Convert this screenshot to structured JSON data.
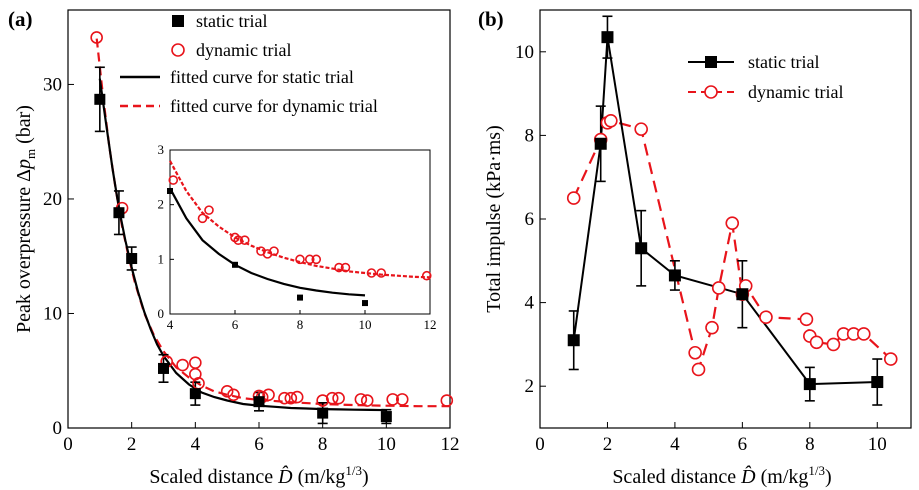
{
  "chart_data": [
    {
      "type": "scatter",
      "panel_label": "(a)",
      "xlabel": "Scaled distance D̂ (m/kg1/3)",
      "ylabel": "Peak overpressure Δpm (bar)",
      "xlim": [
        0,
        12
      ],
      "ylim": [
        0,
        36.5
      ],
      "xticks": [
        0,
        2,
        4,
        6,
        8,
        10,
        12
      ],
      "yticks": [
        0,
        10,
        20,
        30
      ],
      "legend_position": "top-right",
      "legend": [
        "static trial",
        "dynamic trial",
        "fitted curve for static trial",
        "fitted curve for dynamic trial"
      ],
      "colors": {
        "static": "#000000",
        "dynamic": "#e8141b"
      },
      "series": [
        {
          "name": "static trial",
          "marker": "square",
          "x": [
            1.0,
            1.6,
            2.0,
            3.0,
            4.0,
            6.0,
            8.0,
            10.0
          ],
          "y": [
            28.7,
            18.8,
            14.8,
            5.2,
            3.0,
            2.3,
            1.3,
            1.0
          ],
          "err": [
            2.8,
            1.9,
            1.0,
            1.2,
            1.0,
            0.8,
            0.9,
            0.6
          ]
        },
        {
          "name": "dynamic trial",
          "marker": "circle",
          "x": [
            0.9,
            1.7,
            3.1,
            3.6,
            4.0,
            4.0,
            4.1,
            5.0,
            5.2,
            6.0,
            6.1,
            6.3,
            6.8,
            7.0,
            7.2,
            8.0,
            8.3,
            8.5,
            9.2,
            9.4,
            10.2,
            10.5,
            11.9
          ],
          "y": [
            34.1,
            19.2,
            5.8,
            5.5,
            5.7,
            4.7,
            3.9,
            3.2,
            2.9,
            2.8,
            2.7,
            2.9,
            2.6,
            2.6,
            2.7,
            2.4,
            2.6,
            2.6,
            2.5,
            2.4,
            2.5,
            2.5,
            2.4
          ]
        },
        {
          "name": "fitted curve for static trial",
          "line": "solid",
          "x": [
            1.0,
            1.2,
            1.4,
            1.6,
            1.8,
            2.0,
            2.2,
            2.4,
            2.6,
            2.8,
            3.0,
            3.4,
            3.8,
            4.2,
            4.6,
            5.0,
            5.5,
            6.0,
            6.5,
            7.0,
            7.5,
            8.0,
            8.5,
            9.0,
            9.5,
            10.0
          ],
          "y": [
            30.5,
            26.5,
            22.6,
            19.2,
            16.4,
            14.0,
            11.9,
            10.1,
            8.6,
            7.3,
            6.3,
            4.8,
            3.8,
            3.1,
            2.7,
            2.4,
            2.1,
            1.95,
            1.85,
            1.75,
            1.7,
            1.65,
            1.62,
            1.6,
            1.58,
            1.56
          ]
        },
        {
          "name": "fitted curve for dynamic trial",
          "line": "dashed",
          "x": [
            0.9,
            1.1,
            1.3,
            1.5,
            1.7,
            1.9,
            2.1,
            2.4,
            2.7,
            3.0,
            3.4,
            3.8,
            4.2,
            4.6,
            5.0,
            5.5,
            6.0,
            7.0,
            8.0,
            9.0,
            10.0,
            11.0,
            12.0
          ],
          "y": [
            34.0,
            29.0,
            24.5,
            20.8,
            17.6,
            15.0,
            12.7,
            10.0,
            8.1,
            6.7,
            5.3,
            4.4,
            3.7,
            3.2,
            2.9,
            2.6,
            2.45,
            2.25,
            2.1,
            2.0,
            1.95,
            1.9,
            1.9
          ]
        }
      ],
      "inset": {
        "xlim": [
          4,
          12
        ],
        "ylim": [
          0,
          3
        ],
        "xticks": [
          4,
          6,
          8,
          10,
          12
        ],
        "yticks": [
          0,
          1,
          2,
          3
        ],
        "series": [
          {
            "name": "static trial",
            "x": [
              4.0,
              6.0,
              8.0,
              10.0
            ],
            "y": [
              2.25,
              0.9,
              0.3,
              0.2
            ]
          },
          {
            "name": "dynamic trial",
            "x": [
              4.1,
              5.0,
              5.2,
              6.0,
              6.1,
              6.3,
              6.8,
              7.0,
              7.2,
              8.0,
              8.3,
              8.5,
              9.2,
              9.4,
              10.2,
              10.5,
              11.9
            ],
            "y": [
              2.45,
              1.75,
              1.9,
              1.4,
              1.35,
              1.35,
              1.15,
              1.1,
              1.15,
              1.0,
              1.0,
              1.0,
              0.85,
              0.85,
              0.75,
              0.75,
              0.7
            ]
          },
          {
            "name": "fitted curve for static trial",
            "x": [
              4.0,
              4.5,
              5.0,
              5.5,
              6.0,
              6.5,
              7.0,
              7.5,
              8.0,
              8.5,
              9.0,
              9.5,
              10.0
            ],
            "y": [
              2.3,
              1.75,
              1.35,
              1.1,
              0.9,
              0.75,
              0.64,
              0.55,
              0.48,
              0.43,
              0.39,
              0.36,
              0.34
            ]
          },
          {
            "name": "fitted curve for dynamic trial",
            "x": [
              4.0,
              4.5,
              5.0,
              5.5,
              6.0,
              6.5,
              7.0,
              7.5,
              8.0,
              8.5,
              9.0,
              9.5,
              10.0,
              10.5,
              11.0,
              11.5,
              12.0
            ],
            "y": [
              2.8,
              2.25,
              1.85,
              1.6,
              1.4,
              1.25,
              1.13,
              1.03,
              0.95,
              0.88,
              0.83,
              0.78,
              0.75,
              0.72,
              0.7,
              0.68,
              0.67
            ]
          }
        ]
      }
    },
    {
      "type": "line",
      "panel_label": "(b)",
      "xlabel": "Scaled distance D̂ (m/kg1/3)",
      "ylabel": "Total impulse (kPa·ms)",
      "xlim": [
        0,
        11
      ],
      "ylim": [
        1.0,
        11.0
      ],
      "xticks": [
        0,
        2,
        4,
        6,
        8,
        10
      ],
      "yticks": [
        2,
        4,
        6,
        8,
        10
      ],
      "legend_position": "top-right",
      "legend": [
        "static trial",
        "dynamic trial"
      ],
      "colors": {
        "static": "#000000",
        "dynamic": "#e8141b"
      },
      "series": [
        {
          "name": "static trial",
          "marker": "square",
          "x": [
            1.0,
            1.8,
            2.0,
            3.0,
            4.0,
            6.0,
            8.0,
            10.0
          ],
          "y": [
            3.1,
            7.8,
            10.35,
            5.3,
            4.65,
            4.2,
            2.05,
            2.1
          ],
          "err": [
            0.7,
            0.9,
            0.5,
            0.9,
            0.35,
            0.8,
            0.4,
            0.55
          ]
        },
        {
          "name": "dynamic trial",
          "marker": "circle",
          "x": [
            1.0,
            1.8,
            2.0,
            2.1,
            3.0,
            4.6,
            4.7,
            5.1,
            5.3,
            5.7,
            6.0,
            6.1,
            6.7,
            7.9,
            8.0,
            8.2,
            8.7,
            9.0,
            9.3,
            9.6,
            10.4
          ],
          "y": [
            6.5,
            7.9,
            8.3,
            8.35,
            8.15,
            2.8,
            2.4,
            3.4,
            4.35,
            5.9,
            4.2,
            4.4,
            3.65,
            3.6,
            3.2,
            3.05,
            3.0,
            3.25,
            3.25,
            3.25,
            2.65
          ]
        }
      ]
    }
  ]
}
